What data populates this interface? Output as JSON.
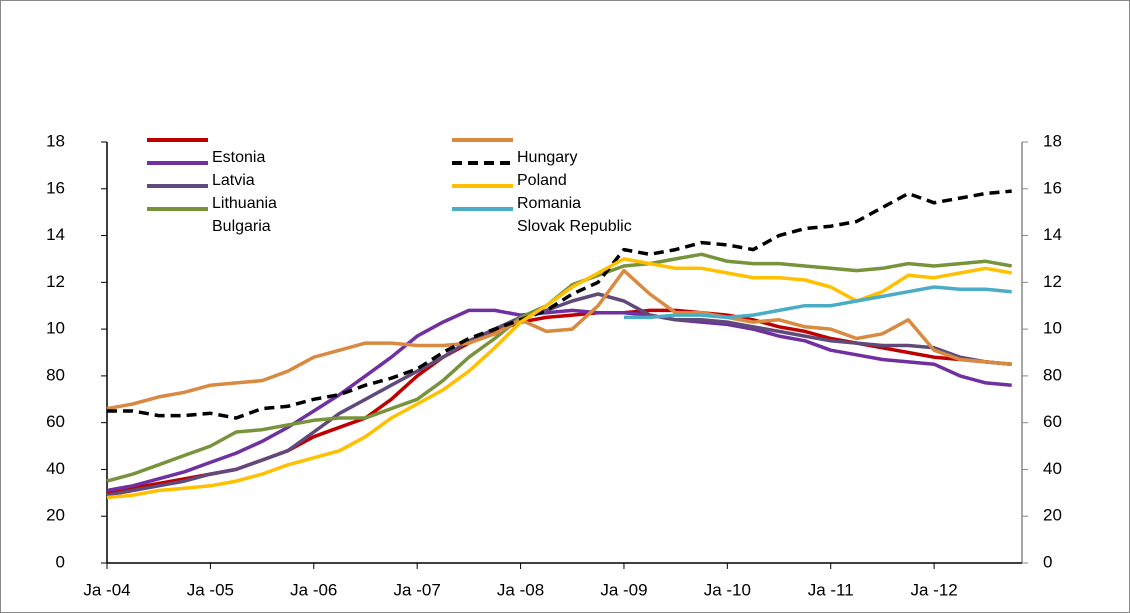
{
  "chart_data": {
    "type": "line",
    "x": [
      2004,
      2004.25,
      2004.5,
      2004.75,
      2005,
      2005.25,
      2005.5,
      2005.75,
      2006,
      2006.25,
      2006.5,
      2006.75,
      2007,
      2007.25,
      2007.5,
      2007.75,
      2008,
      2008.25,
      2008.5,
      2008.75,
      2009,
      2009.25,
      2009.5,
      2009.75,
      2010,
      2010.25,
      2010.5,
      2010.75,
      2011,
      2011.25,
      2011.5,
      2011.75,
      2012,
      2012.25,
      2012.5,
      2012.75
    ],
    "xlim": [
      2004,
      2012.85
    ],
    "xticks": [
      {
        "value": 2004,
        "label": "Ja -04"
      },
      {
        "value": 2005,
        "label": "Ja -05"
      },
      {
        "value": 2006,
        "label": "Ja -06"
      },
      {
        "value": 2007,
        "label": "Ja -07"
      },
      {
        "value": 2008,
        "label": "Ja -08"
      },
      {
        "value": 2009,
        "label": "Ja -09"
      },
      {
        "value": 2010,
        "label": "Ja -10"
      },
      {
        "value": 2011,
        "label": "Ja -11"
      },
      {
        "value": 2012,
        "label": "Ja -12"
      }
    ],
    "ylim": [
      0,
      180
    ],
    "yticks": [
      0,
      20,
      40,
      60,
      80,
      {
        "value": 100,
        "label": "10"
      },
      {
        "value": 120,
        "label": "12"
      },
      {
        "value": 140,
        "label": "14"
      },
      {
        "value": 160,
        "label": "16"
      },
      {
        "value": 180,
        "label": "18"
      }
    ],
    "y2lim": [
      0,
      180
    ],
    "y2ticks": [
      0,
      20,
      40,
      60,
      80,
      {
        "value": 100,
        "label": "10"
      },
      {
        "value": 120,
        "label": "12"
      },
      {
        "value": 140,
        "label": "14"
      },
      {
        "value": 160,
        "label": "16"
      },
      {
        "value": 180,
        "label": "18"
      }
    ],
    "series": [
      {
        "name": "Estonia",
        "color": "#c00000",
        "values": [
          30,
          32,
          34,
          36,
          38,
          40,
          44,
          48,
          54,
          58,
          62,
          70,
          80,
          88,
          94,
          99,
          103,
          105,
          106,
          107,
          107,
          108,
          108,
          107,
          106,
          104,
          101,
          99,
          96,
          94,
          92,
          90,
          88,
          87,
          86,
          85
        ]
      },
      {
        "name": "Latvia",
        "color": "#7030a0",
        "values": [
          31,
          33,
          36,
          39,
          43,
          47,
          52,
          58,
          65,
          72,
          80,
          88,
          97,
          103,
          108,
          108,
          106,
          107,
          108,
          107,
          107,
          106,
          104,
          103,
          102,
          100,
          97,
          95,
          91,
          89,
          87,
          86,
          85,
          80,
          77,
          76
        ]
      },
      {
        "name": "Lithuania",
        "color": "#604a7b",
        "values": [
          29,
          31,
          33,
          35,
          38,
          40,
          44,
          48,
          56,
          64,
          70,
          76,
          82,
          88,
          95,
          100,
          105,
          108,
          112,
          115,
          112,
          106,
          104,
          104,
          103,
          101,
          99,
          97,
          95,
          94,
          93,
          93,
          92,
          88,
          86,
          85
        ]
      },
      {
        "name": "Bulgaria",
        "color": "#77933c",
        "values": [
          35,
          38,
          42,
          46,
          50,
          56,
          57,
          59,
          61,
          62,
          62,
          66,
          70,
          78,
          88,
          96,
          105,
          110,
          119,
          123,
          127,
          128,
          130,
          132,
          129,
          128,
          128,
          127,
          126,
          125,
          126,
          128,
          127,
          128,
          129,
          127
        ]
      },
      {
        "name": "Hungary",
        "color": "#d88a40",
        "values": [
          66,
          68,
          71,
          73,
          76,
          77,
          78,
          82,
          88,
          91,
          94,
          94,
          93,
          93,
          94,
          98,
          104,
          99,
          100,
          110,
          125,
          115,
          107,
          107,
          105,
          103,
          104,
          101,
          100,
          96,
          98,
          104,
          91,
          87,
          86,
          85
        ]
      },
      {
        "name": "Poland",
        "color": "#000000",
        "dashed": true,
        "values": [
          65,
          65,
          63,
          63,
          64,
          62,
          66,
          67,
          70,
          72,
          76,
          79,
          83,
          90,
          96,
          100,
          104,
          108,
          115,
          120,
          134,
          132,
          134,
          137,
          136,
          134,
          140,
          143,
          144,
          146,
          152,
          158,
          154,
          156,
          158,
          159
        ]
      },
      {
        "name": "Romania",
        "color": "#ffc000",
        "values": [
          28,
          29,
          31,
          32,
          33,
          35,
          38,
          42,
          45,
          48,
          54,
          62,
          68,
          74,
          82,
          92,
          103,
          110,
          118,
          124,
          130,
          128,
          126,
          126,
          124,
          122,
          122,
          121,
          118,
          112,
          116,
          123,
          122,
          124,
          126,
          124
        ]
      },
      {
        "name": "Slovak Republic",
        "color": "#4bacc6",
        "values": [
          null,
          null,
          null,
          null,
          null,
          null,
          null,
          null,
          null,
          null,
          null,
          null,
          null,
          null,
          null,
          null,
          null,
          null,
          null,
          null,
          105,
          105,
          106,
          106,
          105,
          106,
          108,
          110,
          110,
          112,
          114,
          116,
          118,
          117,
          117,
          116
        ]
      }
    ]
  }
}
